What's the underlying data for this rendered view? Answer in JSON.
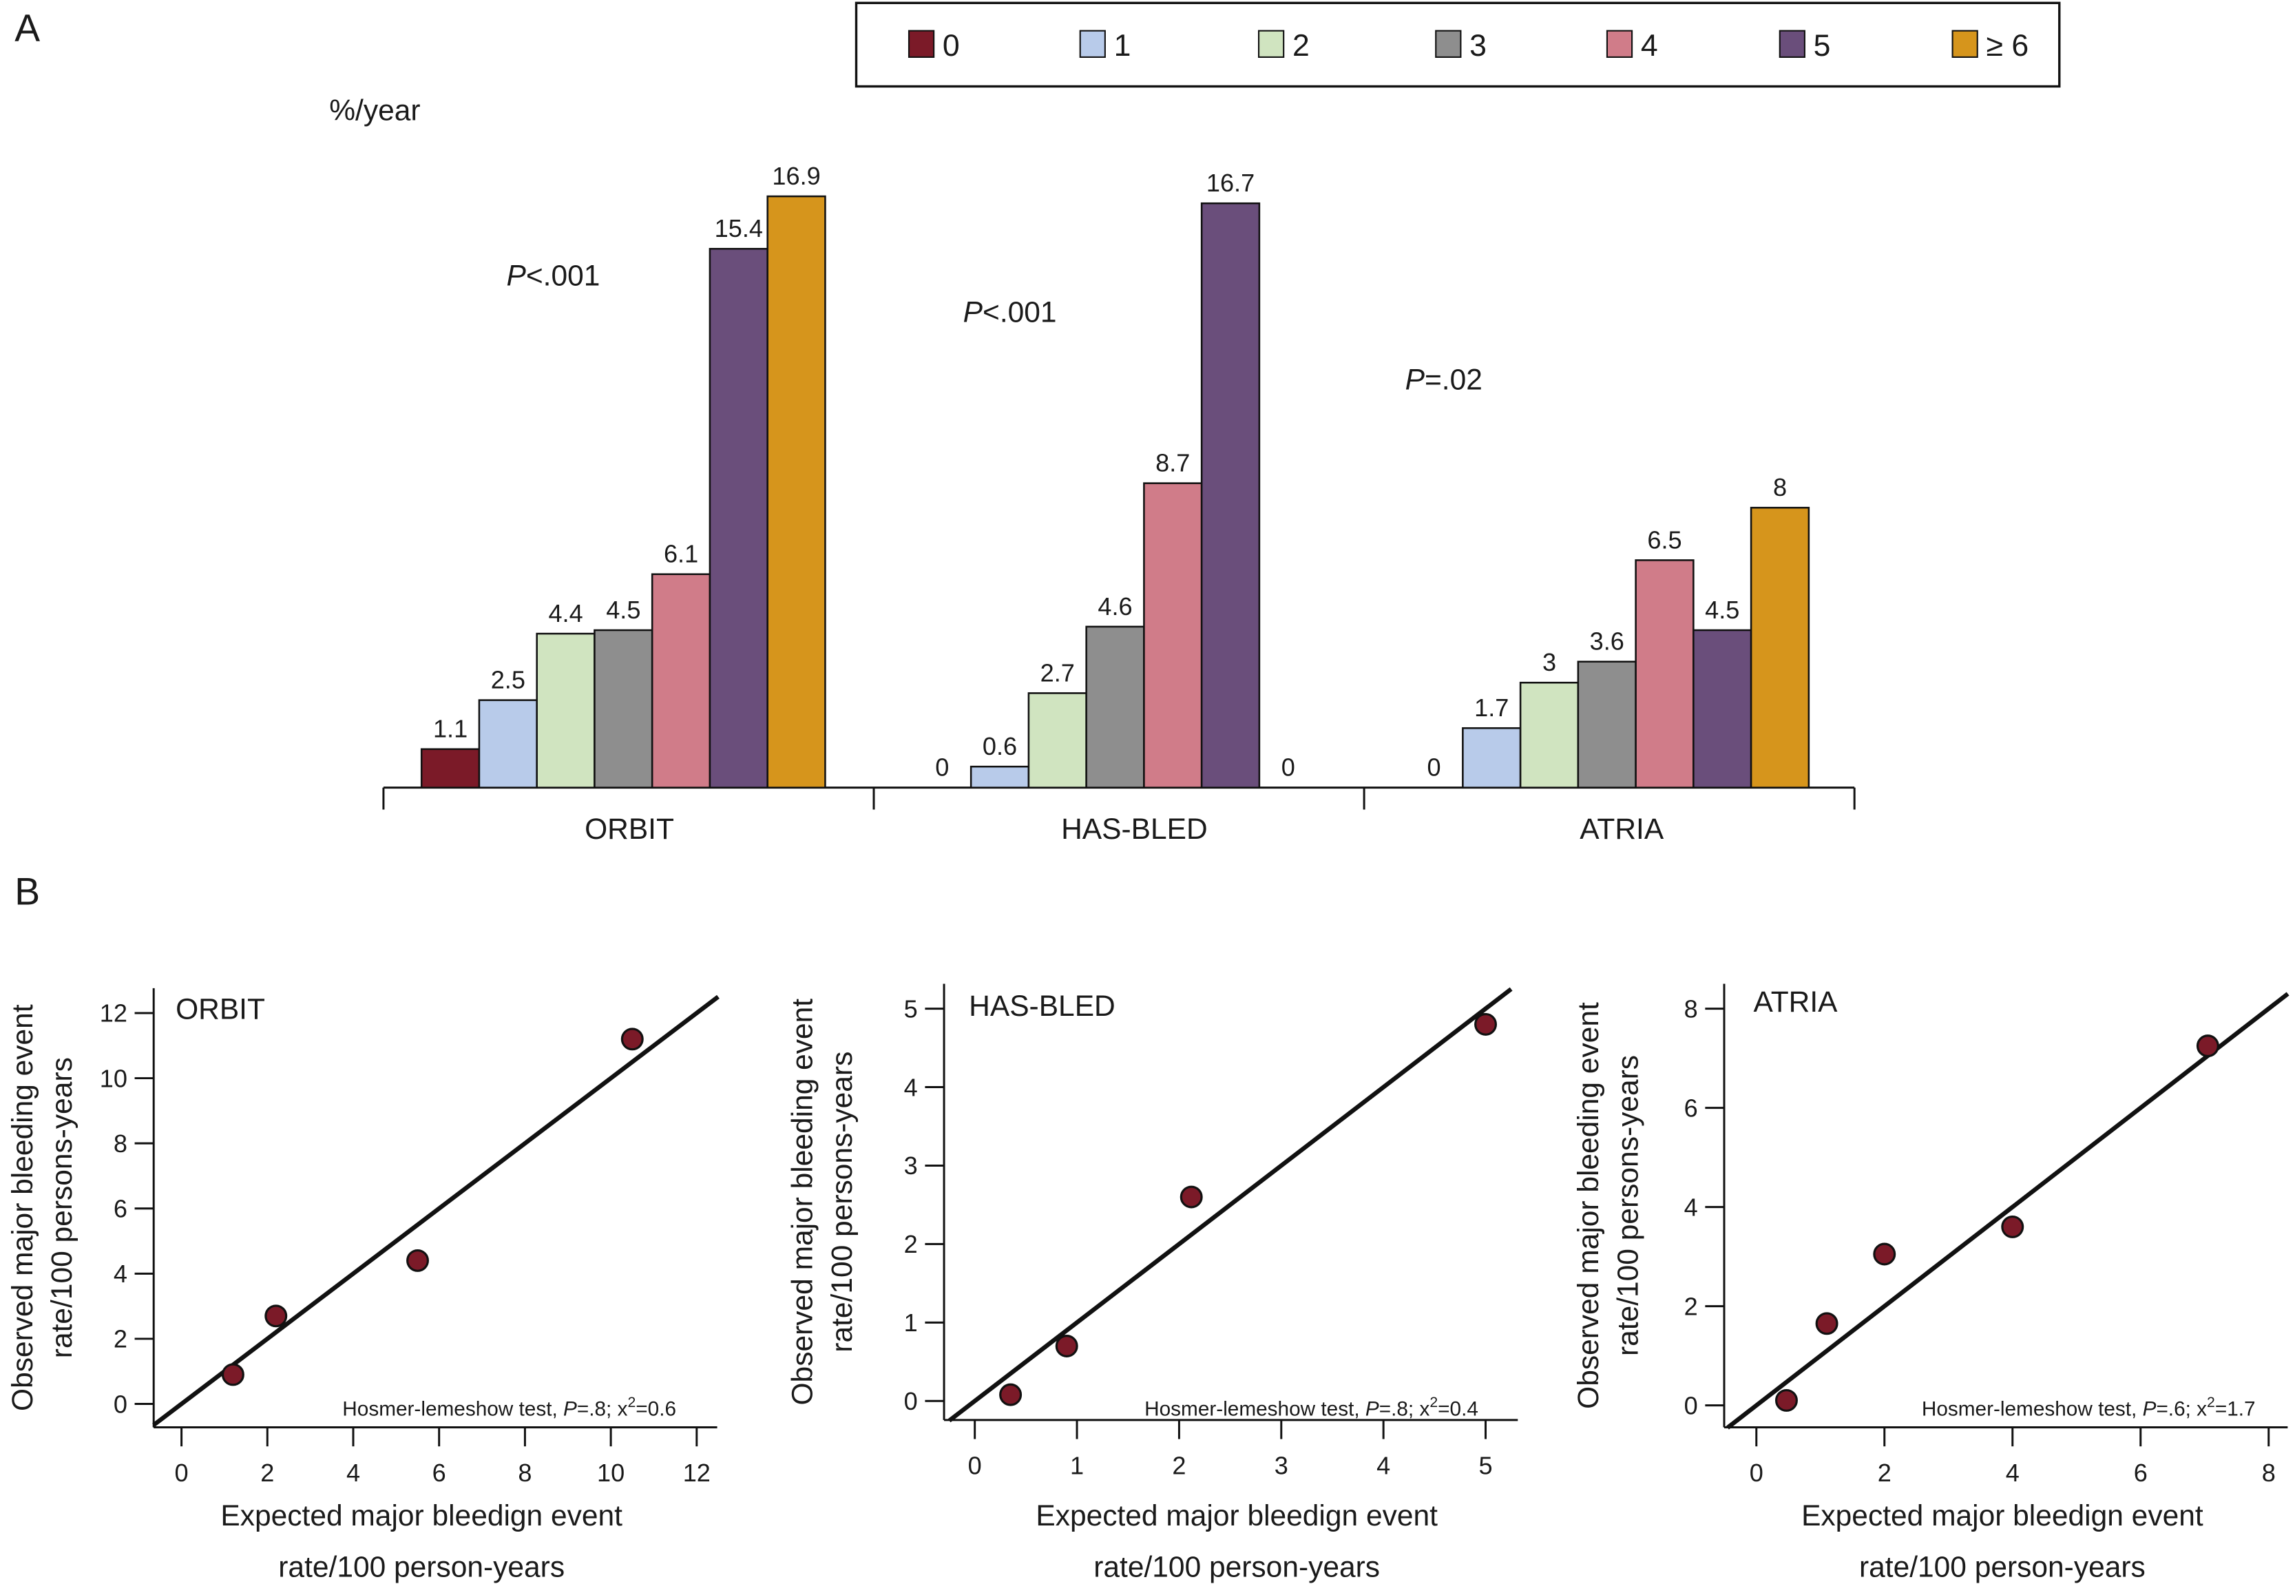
{
  "panel_labels": {
    "a": "A",
    "b": "B"
  },
  "chart_data": [
    {
      "type": "bar",
      "ylabel": "%/year",
      "legend_position": "top",
      "legend": [
        {
          "label": "0",
          "color": "#7b1a28"
        },
        {
          "label": "1",
          "color": "#b8cbea"
        },
        {
          "label": "2",
          "color": "#d0e4c0"
        },
        {
          "label": "3",
          "color": "#8e8e8e"
        },
        {
          "label": "4",
          "color": "#d07c89"
        },
        {
          "label": "5",
          "color": "#6a4e7b"
        },
        {
          "label": "≥ 6",
          "color": "#d6951c"
        }
      ],
      "categories": [
        "ORBIT",
        "HAS-BLED",
        "ATRIA"
      ],
      "series_values": [
        {
          "group": "ORBIT",
          "values": [
            1.1,
            2.5,
            4.4,
            4.5,
            6.1,
            15.4,
            16.9
          ],
          "labels": [
            "1.1",
            "2.5",
            "4.4",
            "4.5",
            "6.1",
            "15.4",
            "16.9"
          ],
          "p_value": {
            "italic": "P",
            "rest": "<.001"
          }
        },
        {
          "group": "HAS-BLED",
          "values": [
            0,
            0.6,
            2.7,
            4.6,
            8.7,
            16.7,
            0
          ],
          "labels": [
            "0",
            "0.6",
            "2.7",
            "4.6",
            "8.7",
            "16.7",
            "0"
          ],
          "p_value": {
            "italic": "P",
            "rest": "<.001"
          }
        },
        {
          "group": "ATRIA",
          "values": [
            0,
            1.7,
            3,
            3.6,
            6.5,
            4.5,
            8
          ],
          "labels": [
            "0",
            "1.7",
            "3",
            "3.6",
            "6.5",
            "4.5",
            "8"
          ],
          "p_value": {
            "italic": "P",
            "rest": "=.02"
          }
        }
      ]
    },
    {
      "type": "scatter",
      "title": "ORBIT",
      "xlabel": [
        "Expected major bleedign event",
        "rate/100 person-years"
      ],
      "ylabel": [
        "Observed major bleeding event",
        "rate/100 persons-years"
      ],
      "xticks": [
        0,
        2,
        4,
        6,
        8,
        10,
        12
      ],
      "yticks": [
        0,
        2,
        4,
        6,
        8,
        10,
        12
      ],
      "xlim": [
        -0.65,
        12.5
      ],
      "ylim": [
        -0.7,
        12.6
      ],
      "points": [
        [
          1.2,
          0.9
        ],
        [
          2.2,
          2.7
        ],
        [
          5.5,
          4.4
        ],
        [
          10.5,
          11.2
        ]
      ],
      "reference_line": "identity",
      "point_color": "#7b1a28",
      "annotation": {
        "text": "Hosmer-lemeshow test, ",
        "p_italic": "P",
        "p_rest": "=.8; x",
        "sup": "2",
        "tail": "=0.6"
      }
    },
    {
      "type": "scatter",
      "title": "HAS-BLED",
      "xlabel": [
        "Expected major bleedign event",
        "rate/100 person-years"
      ],
      "ylabel": [
        "Observed major bleeding event",
        "rate/100 persons-years"
      ],
      "xticks": [
        0,
        1,
        2,
        3,
        4,
        5
      ],
      "yticks": [
        0,
        1,
        2,
        3,
        4,
        5
      ],
      "xlim": [
        -0.3,
        5.25
      ],
      "ylim": [
        -0.25,
        5.25
      ],
      "points": [
        [
          0.35,
          0.08
        ],
        [
          0.9,
          0.7
        ],
        [
          2.12,
          2.6
        ],
        [
          5.0,
          4.8
        ]
      ],
      "reference_line": "identity",
      "point_color": "#7b1a28",
      "annotation": {
        "text": "Hosmer-lemeshow test, ",
        "p_italic": "P",
        "p_rest": "=.8; x",
        "sup": "2",
        "tail": "=0.4"
      }
    },
    {
      "type": "scatter",
      "title": "ATRIA",
      "xlabel": [
        "Expected major bleedign event",
        "rate/100 person-years"
      ],
      "ylabel": [
        "Observed major bleeding event",
        "rate/100 persons-years"
      ],
      "xticks": [
        0,
        2,
        4,
        6,
        8
      ],
      "yticks": [
        0,
        2,
        4,
        6,
        8
      ],
      "xlim": [
        -0.5,
        8.3
      ],
      "ylim": [
        -0.45,
        8.3
      ],
      "points": [
        [
          0.47,
          0.1
        ],
        [
          1.1,
          1.65
        ],
        [
          2.0,
          3.05
        ],
        [
          4.0,
          3.6
        ],
        [
          7.05,
          7.25
        ]
      ],
      "reference_line": "identity",
      "point_color": "#7b1a28",
      "annotation": {
        "text": "Hosmer-lemeshow test, ",
        "p_italic": "P",
        "p_rest": "=.6; x",
        "sup": "2",
        "tail": "=1.7"
      }
    }
  ]
}
